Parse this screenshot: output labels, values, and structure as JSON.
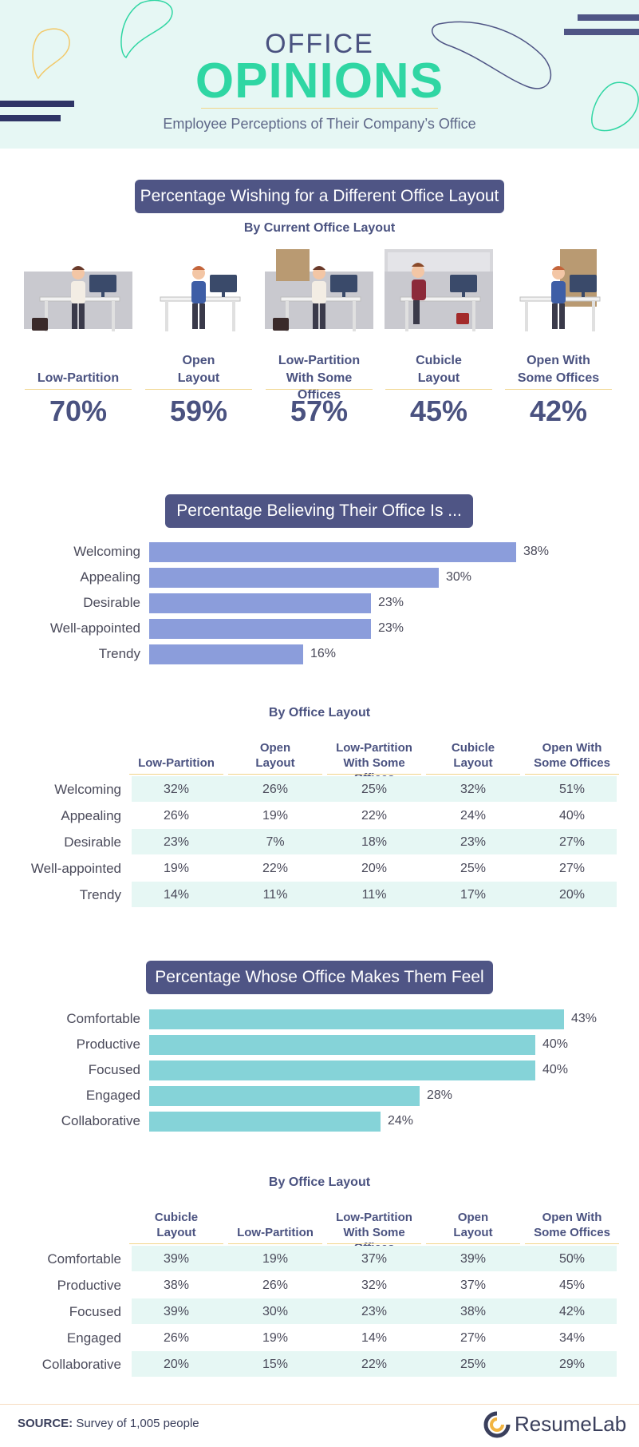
{
  "header": {
    "title_line1": "OFFICE",
    "title_line2": "OPINIONS",
    "subtitle": "Employee Perceptions of Their Company’s Office"
  },
  "section1": {
    "pill": "Percentage Wishing for a Different Office Layout",
    "subhead": "By Current Office Layout",
    "layouts": [
      {
        "line1": "",
        "line2": "Low-Partition",
        "value": "70%"
      },
      {
        "line1": "Open",
        "line2": "Layout",
        "value": "59%"
      },
      {
        "line1": "Low-Partition",
        "line2": "With Some Offices",
        "value": "57%"
      },
      {
        "line1": "Cubicle",
        "line2": "Layout",
        "value": "45%"
      },
      {
        "line1": "Open With",
        "line2": "Some Offices",
        "value": "42%"
      }
    ]
  },
  "section2": {
    "pill": "Percentage Believing Their Office Is ...",
    "table_subhead": "By Office Layout"
  },
  "section3": {
    "pill": "Percentage Whose Office Makes Them Feel ...",
    "table_subhead": "By Office Layout"
  },
  "chart_data": [
    {
      "type": "bar",
      "orientation": "horizontal",
      "title": "Percentage Wishing for a Different Office Layout",
      "categories": [
        "Low-Partition",
        "Open Layout",
        "Low-Partition With Some Offices",
        "Cubicle Layout",
        "Open With Some Offices"
      ],
      "values": [
        70,
        59,
        57,
        45,
        42
      ],
      "labels": [
        "70%",
        "59%",
        "57%",
        "45%",
        "42%"
      ]
    },
    {
      "type": "bar",
      "orientation": "horizontal",
      "title": "Percentage Believing Their Office Is ...",
      "categories": [
        "Welcoming",
        "Appealing",
        "Desirable",
        "Well-appointed",
        "Trendy"
      ],
      "values": [
        38,
        30,
        23,
        23,
        16
      ],
      "labels": [
        "38%",
        "30%",
        "23%",
        "23%",
        "16%"
      ],
      "xlim": [
        0,
        43
      ],
      "color": "#8b9ddb"
    },
    {
      "type": "table",
      "title": "By Office Layout",
      "columns": [
        {
          "line1": "",
          "line2": "Low-Partition"
        },
        {
          "line1": "Open",
          "line2": "Layout"
        },
        {
          "line1": "Low-Partition",
          "line2": "With Some Offices"
        },
        {
          "line1": "Cubicle",
          "line2": "Layout"
        },
        {
          "line1": "Open With",
          "line2": "Some Offices"
        }
      ],
      "rows": [
        {
          "label": "Welcoming",
          "cells": [
            "32%",
            "26%",
            "25%",
            "32%",
            "51%"
          ]
        },
        {
          "label": "Appealing",
          "cells": [
            "26%",
            "19%",
            "22%",
            "24%",
            "40%"
          ]
        },
        {
          "label": "Desirable",
          "cells": [
            "23%",
            "7%",
            "18%",
            "23%",
            "27%"
          ]
        },
        {
          "label": "Well-appointed",
          "cells": [
            "19%",
            "22%",
            "20%",
            "25%",
            "27%"
          ]
        },
        {
          "label": "Trendy",
          "cells": [
            "14%",
            "11%",
            "11%",
            "17%",
            "20%"
          ]
        }
      ]
    },
    {
      "type": "bar",
      "orientation": "horizontal",
      "title": "Percentage Whose Office Makes Them Feel ...",
      "categories": [
        "Comfortable",
        "Productive",
        "Focused",
        "Engaged",
        "Collaborative"
      ],
      "values": [
        43,
        40,
        40,
        28,
        24
      ],
      "labels": [
        "43%",
        "40%",
        "40%",
        "28%",
        "24%"
      ],
      "xlim": [
        0,
        43
      ],
      "color": "#85d3d8"
    },
    {
      "type": "table",
      "title": "By Office Layout",
      "columns": [
        {
          "line1": "Cubicle",
          "line2": "Layout"
        },
        {
          "line1": "",
          "line2": "Low-Partition"
        },
        {
          "line1": "Low-Partition",
          "line2": "With Some Offices"
        },
        {
          "line1": "Open",
          "line2": "Layout"
        },
        {
          "line1": "Open With",
          "line2": "Some Offices"
        }
      ],
      "rows": [
        {
          "label": "Comfortable",
          "cells": [
            "39%",
            "19%",
            "37%",
            "39%",
            "50%"
          ]
        },
        {
          "label": "Productive",
          "cells": [
            "38%",
            "26%",
            "32%",
            "37%",
            "45%"
          ]
        },
        {
          "label": "Focused",
          "cells": [
            "39%",
            "30%",
            "23%",
            "38%",
            "42%"
          ]
        },
        {
          "label": "Engaged",
          "cells": [
            "26%",
            "19%",
            "14%",
            "27%",
            "34%"
          ]
        },
        {
          "label": "Collaborative",
          "cells": [
            "20%",
            "15%",
            "22%",
            "25%",
            "29%"
          ]
        }
      ]
    }
  ],
  "footer": {
    "source_label": "SOURCE:",
    "source_text": " Survey of 1,005 people",
    "brand": "ResumeLab"
  },
  "colors": {
    "navy": "#4f5585",
    "mint": "#2fd6a3",
    "bar_believe": "#8b9ddb",
    "bar_feel": "#85d3d8",
    "band": "#e6f7f4",
    "gold_rule": "#f1d58a"
  }
}
